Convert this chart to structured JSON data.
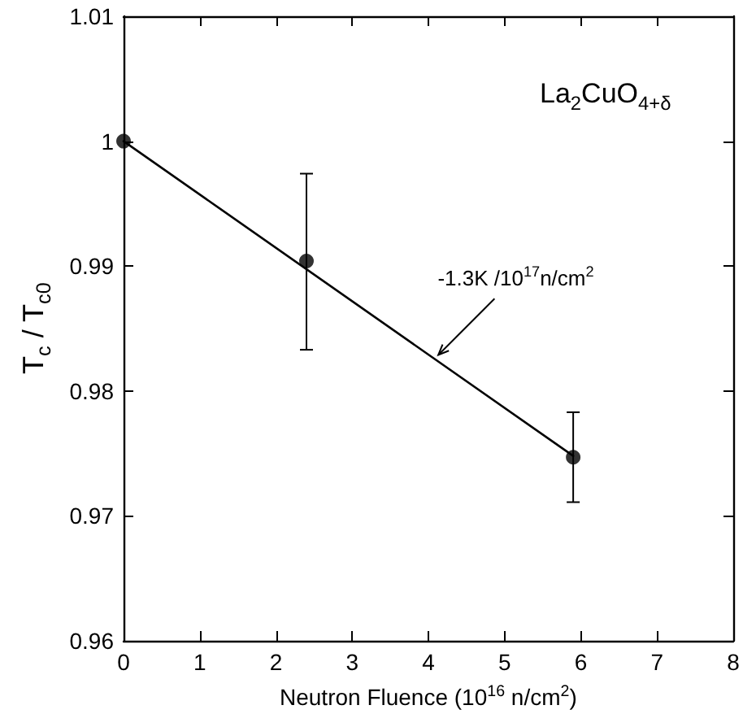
{
  "chart_data": {
    "type": "scatter",
    "title": "La$_{2}$CuO$_{4+δ}$",
    "xlabel": "Neutron Fluence (10$^{16}$ n/cm$^{2}$)",
    "ylabel": "T$_{c}$ / T$_{c0}$",
    "series": [
      {
        "color": "#000000",
        "marker": "circle",
        "x": [
          0,
          2.4,
          5.9
        ],
        "values": [
          1.0,
          0.9904,
          0.9747
        ],
        "errors": [
          null,
          [
            0.9833,
            0.9974
          ],
          [
            0.9711,
            0.9783
          ]
        ]
      },
      {
        "type": "line",
        "color": "#000000",
        "marker": "none",
        "line_style": "solid",
        "x": [
          0,
          5.9
        ],
        "values": [
          1.0,
          0.9748
        ]
      }
    ],
    "annotations": [
      {
        "text": "-1.3K /10$^{17}$n/cm$^{2}$",
        "x": 4.1,
        "y": 0.9827
      }
    ],
    "xlim": [
      0,
      8
    ],
    "xticks": [
      0,
      1,
      2,
      3,
      4,
      5,
      6,
      7,
      8
    ],
    "ylim": [
      0.96,
      1.01
    ],
    "yticks": [
      0.96,
      0.97,
      0.98,
      0.99,
      1,
      1.01
    ]
  }
}
